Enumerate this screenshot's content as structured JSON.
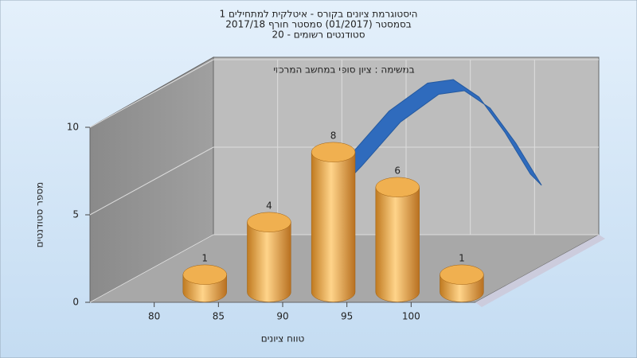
{
  "chart_data": {
    "type": "histogram",
    "title": [
      "היסטוגרמת ציונים בקורס - איטלקית למתחילים 1",
      "בסמסטר (01/2017) סמסטר חורף 2017/18",
      "סטודנטים רשומים - 20"
    ],
    "subtitle": "במשימה : ציון סופי במחשב המרכזי",
    "x_label": "טווח ציונים",
    "y_label": "מספר סטודנטים",
    "bins": [
      80,
      85,
      90,
      95,
      100,
      105
    ],
    "values": [
      1,
      4,
      8,
      6,
      1
    ],
    "color": "#e8a848",
    "curve": {
      "color": "#2f6bbd",
      "x": [
        87,
        90,
        93,
        96,
        98,
        100,
        102,
        104
      ],
      "values": [
        4,
        6.3,
        8.8,
        10.4,
        10.6,
        9.6,
        7.6,
        5.2
      ]
    },
    "xlim": [
      75,
      105
    ],
    "xticks": [
      80,
      85,
      90,
      95,
      100
    ],
    "ylim": [
      0,
      10
    ],
    "yticks": [
      0,
      5,
      10
    ],
    "grid": true
  }
}
